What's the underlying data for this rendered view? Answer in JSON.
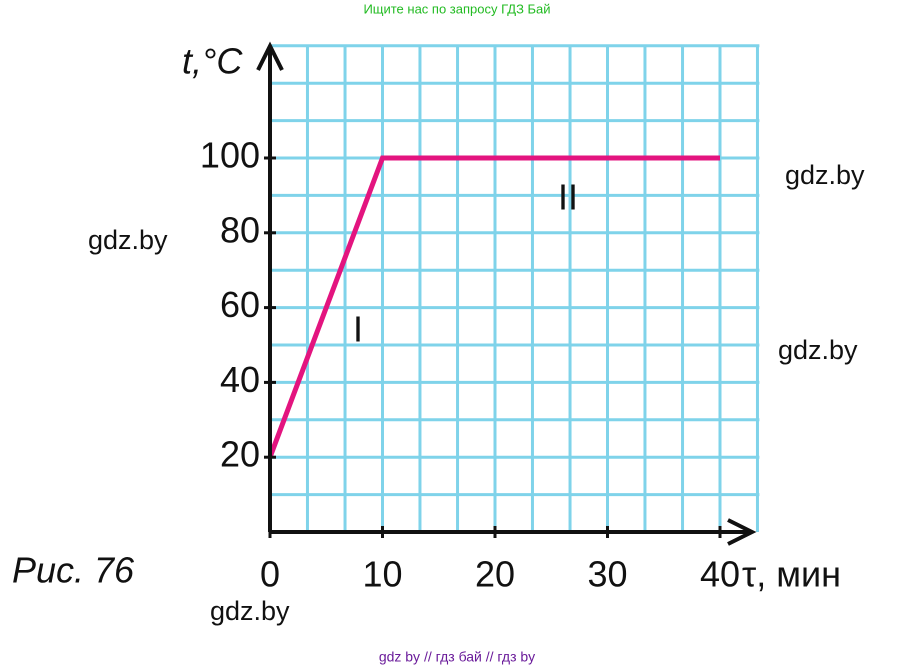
{
  "header": "Ищите нас по запросу ГДЗ Бай",
  "footer": "gdz by  //  гдз бай  //  гдз by",
  "watermarks": [
    "gdz.by",
    "gdz.by",
    "gdz.by",
    "gdz.by"
  ],
  "caption": "Рис. 76",
  "chart_data": {
    "type": "line",
    "y_label": "t,°C",
    "x_label": "τ, мин",
    "x": [
      0,
      10,
      40
    ],
    "series": [
      {
        "values": [
          20,
          100,
          100
        ],
        "color": "#e3147f"
      }
    ],
    "annotations": [
      "I",
      "II"
    ],
    "xlim": [
      0,
      43.5
    ],
    "ylim": [
      0,
      130
    ],
    "xticks": [
      0,
      10,
      20,
      30,
      40
    ],
    "yticks": [
      20,
      40,
      60,
      80,
      100
    ],
    "grid": true,
    "grid_color": "#7fd3ea",
    "xgrid": [
      3.33,
      6.67,
      10,
      13.33,
      16.67,
      20,
      23.33,
      26.67,
      30,
      33.33,
      36.67,
      40,
      43.33
    ],
    "ygrid": [
      10,
      20,
      30,
      40,
      50,
      60,
      70,
      80,
      90,
      100,
      110,
      120,
      130
    ]
  }
}
